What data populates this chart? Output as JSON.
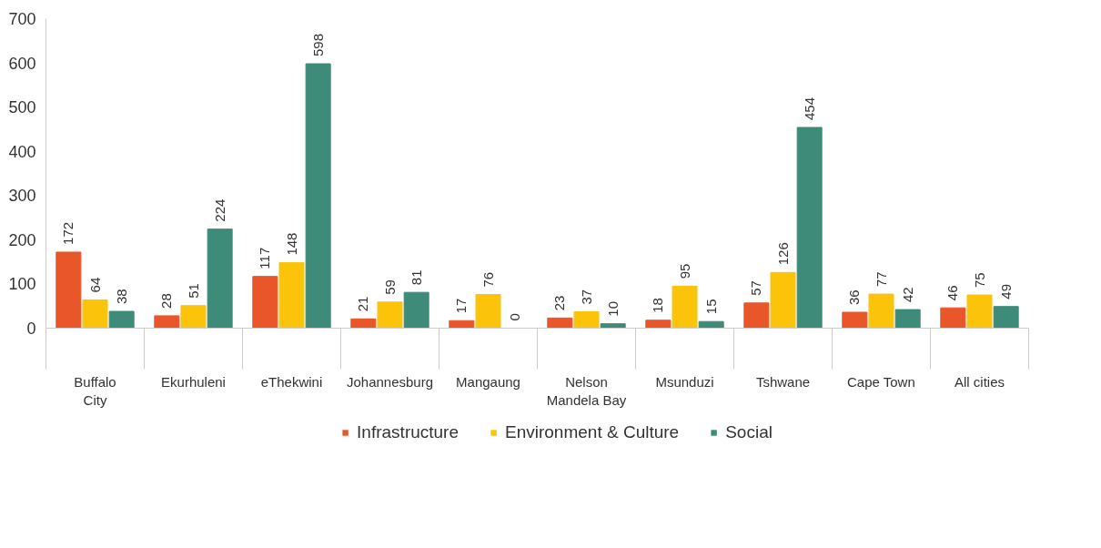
{
  "chart_data": {
    "type": "bar",
    "categories": [
      "Buffalo City",
      "Ekurhuleni",
      "eThekwini",
      "Johannesburg",
      "Mangaung",
      "Nelson Mandela Bay",
      "Msunduzi",
      "Tshwane",
      "Cape Town",
      "All cities"
    ],
    "series": [
      {
        "name": "Infrastructure",
        "color": "#e8562a",
        "values": [
          172,
          28,
          117,
          21,
          17,
          23,
          18,
          57,
          36,
          46
        ]
      },
      {
        "name": "Environment & Culture",
        "color": "#fcc30b",
        "values": [
          64,
          51,
          148,
          59,
          76,
          37,
          95,
          126,
          77,
          75
        ]
      },
      {
        "name": "Social",
        "color": "#3d8b78",
        "values": [
          38,
          224,
          598,
          81,
          0,
          10,
          15,
          454,
          42,
          49
        ]
      }
    ],
    "ylim": [
      0,
      700
    ],
    "yticks": [
      0,
      100,
      200,
      300,
      400,
      500,
      600,
      700
    ],
    "grid": false,
    "legend": "bottom",
    "data_labels": true
  }
}
